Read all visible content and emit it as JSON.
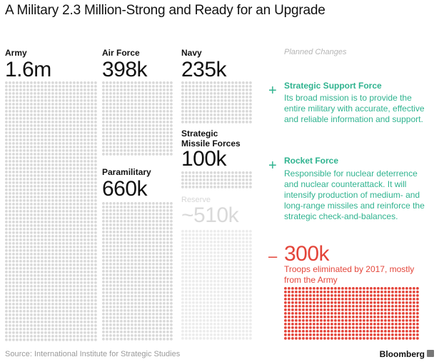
{
  "chart_data": {
    "type": "dot-grid",
    "title": "A Military 2.3 Million-Strong and Ready for an Upgrade",
    "unit": "troops",
    "series": [
      {
        "name": "Army",
        "value_label": "1.6m",
        "value": 1600000,
        "color": "#d9d9d9"
      },
      {
        "name": "Air Force",
        "value_label": "398k",
        "value": 398000,
        "color": "#d9d9d9"
      },
      {
        "name": "Navy",
        "value_label": "235k",
        "value": 235000,
        "color": "#d9d9d9"
      },
      {
        "name": "Strategic Missile Forces",
        "value_label": "100k",
        "value": 100000,
        "color": "#d9d9d9"
      },
      {
        "name": "Paramilitary",
        "value_label": "660k",
        "value": 660000,
        "color": "#d9d9d9"
      },
      {
        "name": "Reserve",
        "value_label": "~510k",
        "value": 510000,
        "color": "#ececec"
      }
    ],
    "planned_changes": {
      "heading": "Planned Changes",
      "additions": [
        {
          "name": "Strategic Support Force",
          "description": "Its broad mission is to provide the entire military with accurate, effective and reliable information and support."
        },
        {
          "name": "Rocket Force",
          "description": "Responsible for nuclear deterrence and nuclear counterattack. It will intensify production of medium- and long-range missiles and reinforce the strategic check-and-balances."
        }
      ],
      "reduction": {
        "value_label": "300k",
        "value": 300000,
        "description": "Troops eliminated by 2017, mostly from the Army",
        "color": "#e4453a"
      }
    }
  },
  "labels": {
    "army": "Army",
    "air_force": "Air Force",
    "navy": "Navy",
    "smf_line1": "Strategic",
    "smf_line2": "Missile Forces",
    "paramilitary": "Paramilitary",
    "reserve": "Reserve"
  },
  "symbols": {
    "plus": "+",
    "minus": "–"
  },
  "colors": {
    "green": "#2fb38f",
    "red": "#e4453a",
    "dot": "#d9d9d9",
    "dot_light": "#ececec"
  },
  "footer": {
    "source": "Source: International Institute for Strategic Studies",
    "brand": "Bloomberg"
  }
}
